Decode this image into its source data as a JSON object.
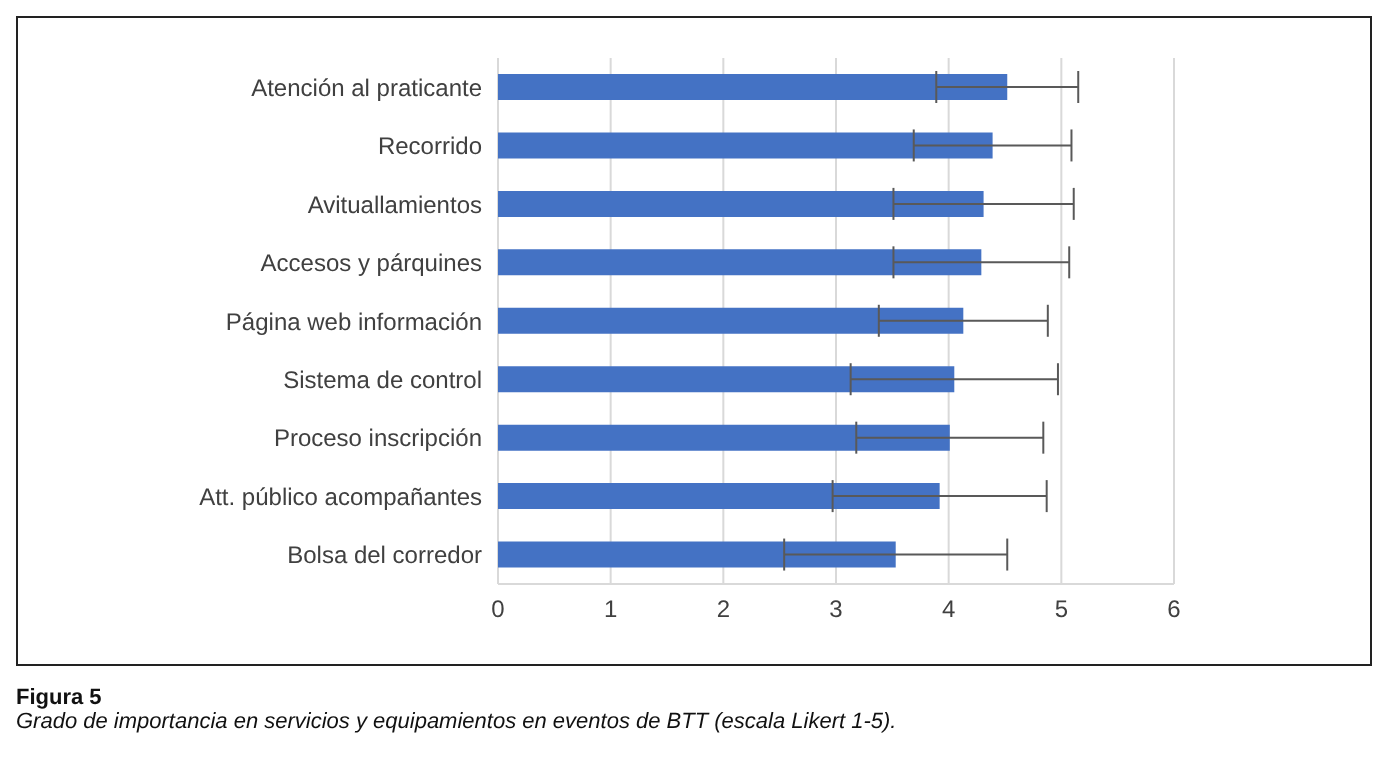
{
  "chart_data": {
    "type": "bar",
    "orientation": "horizontal",
    "title": "Figura 5",
    "subtitle": "Grado de importancia en servicios y equipamientos en eventos de BTT (escala Likert 1-5).",
    "categories": [
      "Atención al praticante",
      "Recorrido",
      "Avituallamientos",
      "Accesos y párquines",
      "Página web información",
      "Sistema de control",
      "Proceso inscripción",
      "Att. público acompañantes",
      "Bolsa del corredor"
    ],
    "values": [
      4.52,
      4.39,
      4.31,
      4.29,
      4.13,
      4.05,
      4.01,
      3.92,
      3.53
    ],
    "errors": [
      0.63,
      0.7,
      0.8,
      0.78,
      0.75,
      0.92,
      0.83,
      0.95,
      0.99
    ],
    "color": "#4472c4",
    "xlim": [
      0,
      6
    ],
    "xticks": [
      0,
      1,
      2,
      3,
      4,
      5,
      6
    ],
    "grid": "x"
  }
}
